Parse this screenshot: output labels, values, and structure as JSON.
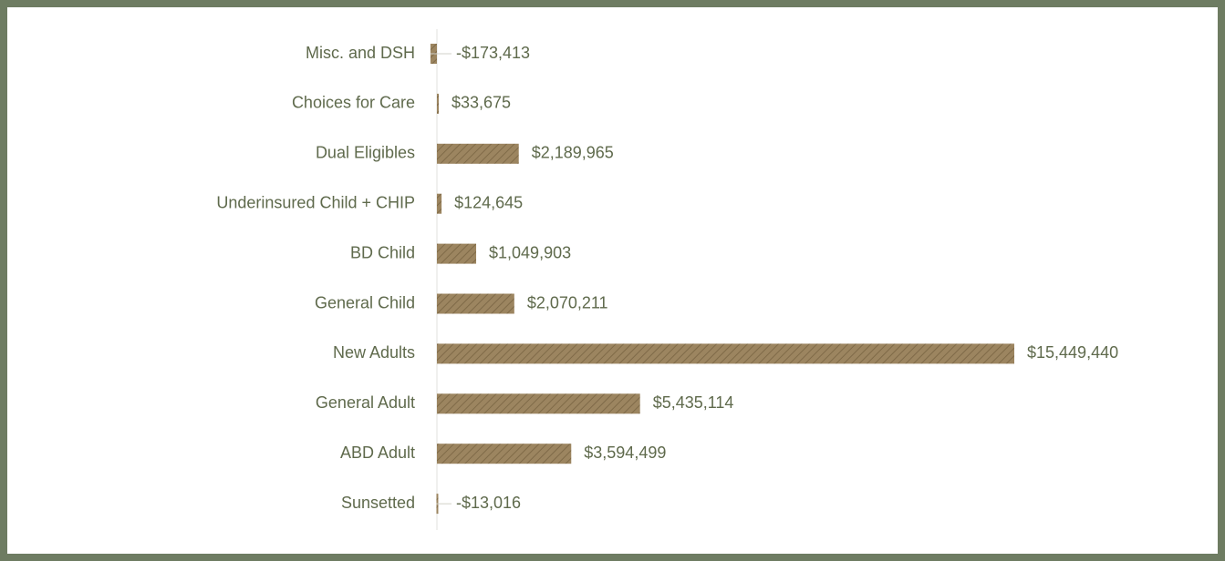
{
  "chart_data": {
    "type": "bar",
    "orientation": "horizontal",
    "categories": [
      "Misc. and DSH",
      "Choices for Care",
      "Dual Eligibles",
      "Underinsured Child + CHIP",
      "BD Child",
      "General Child",
      "New Adults",
      "General Adult",
      "ABD Adult",
      "Sunsetted"
    ],
    "values": [
      -173413,
      33675,
      2189965,
      124645,
      1049903,
      2070211,
      15449440,
      5435114,
      3594499,
      -13016
    ],
    "value_labels": [
      "-$173,413",
      "$33,675",
      "$2,189,965",
      "$124,645",
      "$1,049,903",
      "$2,070,211",
      "$15,449,440",
      "$5,435,114",
      "$3,594,499",
      "-$13,016"
    ],
    "color": "#9c8560"
  }
}
